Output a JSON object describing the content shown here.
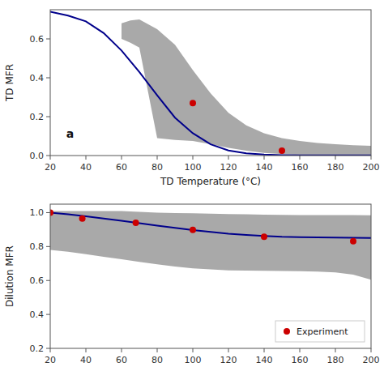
{
  "chart_data": [
    {
      "type": "line",
      "xlabel": "TD Temperature (°C)",
      "ylabel": "TD MFR",
      "annotation": "a",
      "xlim": [
        20,
        200
      ],
      "ylim": [
        0.0,
        0.75
      ],
      "xticks": [
        20,
        40,
        60,
        80,
        100,
        120,
        140,
        160,
        180,
        200
      ],
      "yticks": [
        {
          "value": 0.0,
          "label": "0.0"
        },
        0.2,
        0.4,
        0.6
      ],
      "series": [
        {
          "type": "band",
          "color": "#A0A0A0",
          "x": [
            60,
            65,
            70,
            80,
            90,
            100,
            110,
            120,
            130,
            140,
            150,
            160,
            170,
            180,
            190,
            200
          ],
          "upper": [
            0.68,
            0.695,
            0.7,
            0.65,
            0.57,
            0.44,
            0.32,
            0.22,
            0.155,
            0.115,
            0.09,
            0.075,
            0.065,
            0.058,
            0.053,
            0.05
          ],
          "lower": [
            0.6,
            0.58,
            0.555,
            0.09,
            0.08,
            0.075,
            0.058,
            0.04,
            0.025,
            0.014,
            0.007,
            0.003,
            0.002,
            0.001,
            0.001,
            0.001
          ]
        },
        {
          "type": "line",
          "color": "#00008B",
          "x": [
            20,
            30,
            40,
            50,
            60,
            70,
            80,
            90,
            100,
            110,
            120,
            130,
            140,
            150,
            160,
            170,
            180,
            190,
            200
          ],
          "values": [
            0.74,
            0.72,
            0.69,
            0.63,
            0.54,
            0.43,
            0.31,
            0.195,
            0.115,
            0.058,
            0.026,
            0.011,
            0.005,
            0.002,
            0.001,
            0.001,
            0.001,
            0.001,
            0.001
          ]
        },
        {
          "type": "scatter",
          "color": "#CC0000",
          "x": [
            100,
            150
          ],
          "values": [
            0.27,
            0.025
          ]
        }
      ]
    },
    {
      "type": "line",
      "ylabel": "Dilution MFR",
      "legend": "lower right",
      "xlim": [
        20,
        200
      ],
      "ylim": [
        0.2,
        1.05
      ],
      "xticks": [
        20,
        40,
        60,
        80,
        100,
        120,
        140,
        160,
        180,
        200
      ],
      "yticks": [
        0.2,
        0.4,
        0.6,
        0.8,
        {
          "value": 1.0,
          "label": "1.0"
        }
      ],
      "series": [
        {
          "type": "band",
          "color": "#A0A0A0",
          "x": [
            20,
            30,
            40,
            50,
            60,
            70,
            80,
            90,
            100,
            110,
            120,
            130,
            140,
            150,
            160,
            170,
            180,
            190,
            200
          ],
          "upper": [
            1.01,
            1.01,
            1.01,
            1.01,
            1.01,
            1.005,
            1.0,
            0.998,
            0.996,
            0.994,
            0.992,
            0.99,
            0.988,
            0.987,
            0.986,
            0.985,
            0.985,
            0.985,
            0.984
          ],
          "lower": [
            0.78,
            0.77,
            0.755,
            0.74,
            0.725,
            0.71,
            0.695,
            0.682,
            0.672,
            0.665,
            0.66,
            0.658,
            0.657,
            0.656,
            0.655,
            0.652,
            0.648,
            0.635,
            0.605
          ]
        },
        {
          "type": "line",
          "color": "#00008B",
          "x": [
            20,
            30,
            40,
            50,
            60,
            70,
            80,
            90,
            100,
            110,
            120,
            130,
            140,
            150,
            160,
            170,
            180,
            190,
            200
          ],
          "values": [
            1.0,
            0.99,
            0.978,
            0.965,
            0.952,
            0.938,
            0.924,
            0.91,
            0.897,
            0.886,
            0.876,
            0.869,
            0.863,
            0.858,
            0.856,
            0.854,
            0.853,
            0.852,
            0.851
          ]
        },
        {
          "type": "scatter",
          "color": "#CC0000",
          "name": "Experiment",
          "x": [
            20,
            38,
            68,
            100,
            140,
            190
          ],
          "values": [
            1.0,
            0.965,
            0.94,
            0.898,
            0.858,
            0.832
          ]
        }
      ]
    }
  ]
}
